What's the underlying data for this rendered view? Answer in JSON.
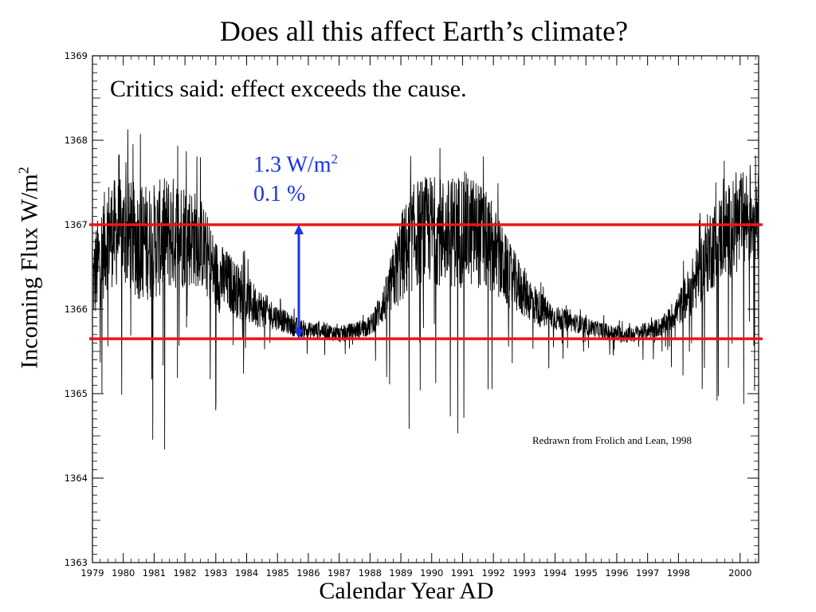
{
  "slide_title": "Does all this affect Earth’s climate?",
  "ylabel_main": "Incoming Flux W/m",
  "ylabel_sup": "2",
  "xlabel": "Calendar Year AD",
  "annotations": {
    "critics": "Critics said: effect exceeds the cause.",
    "delta_wm": "1.3 W/m",
    "delta_wm_sup": "2",
    "delta_pct": "0.1 %",
    "credit": "Redrawn from Frolich and Lean, 1998"
  },
  "colors": {
    "series": "#000000",
    "reference_lines": "#e8161e",
    "arrow": "#1a33e6",
    "annotation_text": "#1a33e6"
  },
  "chart_data": {
    "type": "line",
    "title": "",
    "xlabel": "Calendar Year AD",
    "ylabel": "Incoming Flux W/m2",
    "xlim": [
      1979.0,
      2000.6
    ],
    "ylim": [
      1363,
      1369
    ],
    "x_ticks": [
      "1979",
      "1980",
      "1981",
      "1982",
      "1983",
      "1984",
      "1985",
      "1986",
      "1987",
      "1988",
      "1989",
      "1990",
      "1991",
      "1992",
      "1993",
      "1994",
      "1995",
      "1996",
      "1997",
      "1998",
      "2000"
    ],
    "y_ticks": [
      "1363",
      "1364",
      "1365",
      "1366",
      "1367",
      "1368",
      "1369"
    ],
    "grid": false,
    "series": [
      {
        "x": [
          1979.0,
          1979.5,
          1980.0,
          1980.5,
          1981.0,
          1981.5,
          1982.0,
          1982.5,
          1983.0,
          1983.5,
          1984.0,
          1984.5,
          1985.0,
          1985.5,
          1986.0,
          1986.5,
          1987.0,
          1987.5,
          1988.0,
          1988.5,
          1989.0,
          1989.5,
          1990.0,
          1990.5,
          1991.0,
          1991.5,
          1992.0,
          1992.5,
          1993.0,
          1993.5,
          1994.0,
          1994.5,
          1995.0,
          1995.5,
          1996.0,
          1996.5,
          1997.0,
          1997.5,
          1998.0,
          1998.5,
          1999.0,
          1999.5,
          2000.0,
          2000.5
        ],
        "y": [
          1366.3,
          1366.9,
          1366.9,
          1366.8,
          1366.8,
          1366.9,
          1366.9,
          1366.8,
          1366.4,
          1366.3,
          1366.1,
          1366.0,
          1365.9,
          1365.8,
          1365.75,
          1365.75,
          1365.7,
          1365.75,
          1365.8,
          1366.1,
          1366.6,
          1366.9,
          1366.95,
          1366.9,
          1366.95,
          1366.9,
          1366.7,
          1366.4,
          1366.2,
          1366.0,
          1365.9,
          1365.85,
          1365.8,
          1365.75,
          1365.7,
          1365.7,
          1365.75,
          1365.8,
          1366.0,
          1366.3,
          1366.7,
          1366.9,
          1367.0,
          1367.2
        ],
        "spread": [
          0.55,
          0.65,
          0.65,
          0.7,
          0.7,
          0.7,
          0.65,
          0.55,
          0.45,
          0.35,
          0.3,
          0.22,
          0.15,
          0.12,
          0.1,
          0.1,
          0.1,
          0.1,
          0.12,
          0.25,
          0.55,
          0.65,
          0.65,
          0.65,
          0.7,
          0.65,
          0.55,
          0.4,
          0.3,
          0.22,
          0.15,
          0.12,
          0.1,
          0.1,
          0.1,
          0.1,
          0.1,
          0.12,
          0.2,
          0.35,
          0.5,
          0.55,
          0.6,
          0.65
        ]
      }
    ],
    "reference_lines": [
      1367.0,
      1365.65
    ],
    "arrow_between": [
      1367.0,
      1365.65
    ]
  }
}
